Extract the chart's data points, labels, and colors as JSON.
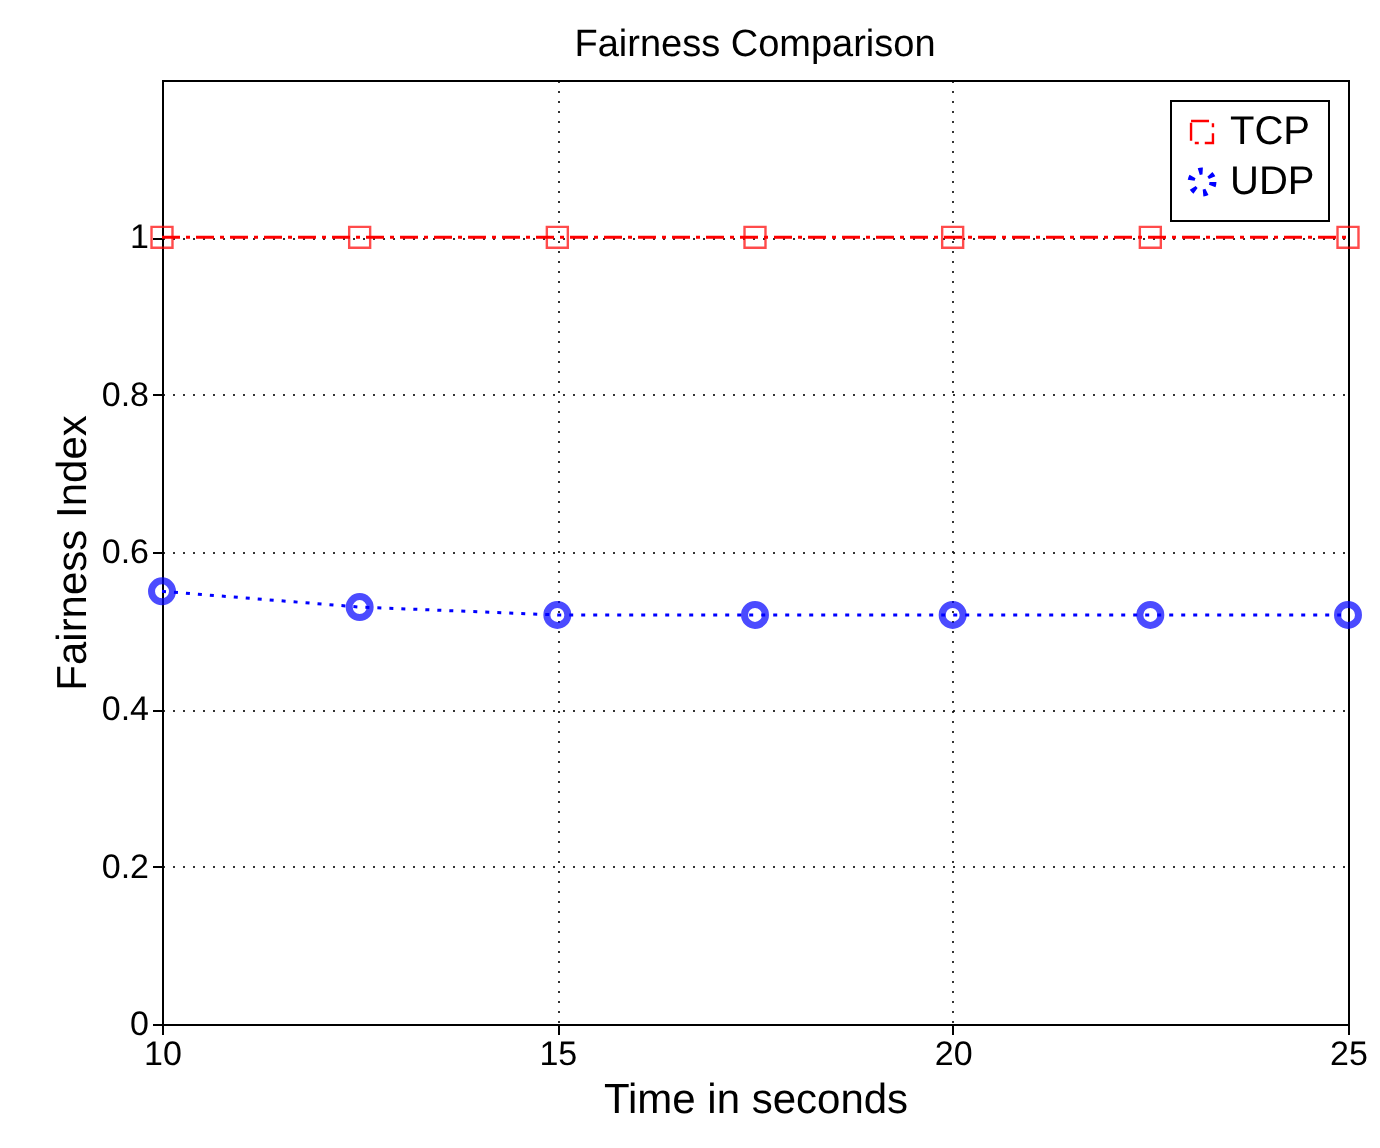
{
  "chart_data": {
    "type": "line",
    "title": "Fairness Comparison",
    "xlabel": "Time in seconds",
    "ylabel": "Fairness Index",
    "x": [
      10,
      12.5,
      15,
      17.5,
      20,
      22.5,
      25
    ],
    "series": [
      {
        "name": "TCP",
        "color": "#ff0000",
        "marker": "square",
        "line_style": "dashdot",
        "values": [
          1,
          1,
          1,
          1,
          1,
          1,
          1
        ]
      },
      {
        "name": "UDP",
        "color": "#0000ff",
        "marker": "circle",
        "line_style": "dotted",
        "values": [
          0.55,
          0.53,
          0.52,
          0.52,
          0.52,
          0.52,
          0.52
        ]
      }
    ],
    "xlim": [
      10,
      25
    ],
    "xticks": [
      10,
      15,
      20,
      25
    ],
    "ylim": [
      0,
      1.2
    ],
    "yticks": [
      0,
      0.2,
      0.4,
      0.6,
      0.8,
      1
    ],
    "grid": true,
    "legend": "top right"
  }
}
